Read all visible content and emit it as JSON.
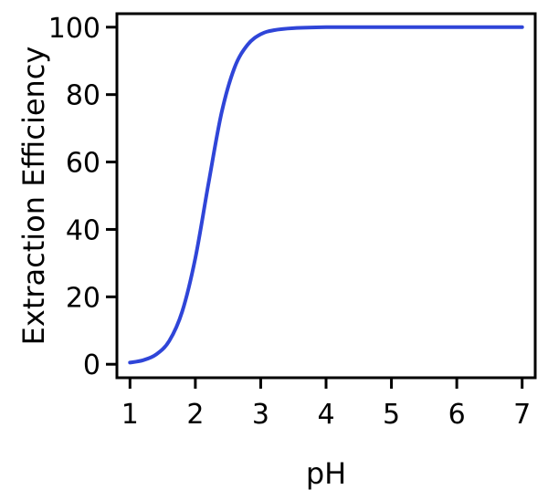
{
  "chart_data": {
    "type": "line",
    "title": "",
    "xlabel": "pH",
    "ylabel": "Extraction Efficiency",
    "xlim": [
      0.8,
      7.2
    ],
    "ylim": [
      -4,
      104
    ],
    "xticks": [
      "1",
      "2",
      "3",
      "4",
      "5",
      "6",
      "7"
    ],
    "yticks": [
      "0",
      "20",
      "40",
      "60",
      "80",
      "100"
    ],
    "grid": false,
    "legend": "none",
    "series": [
      {
        "color": "#2f45d8",
        "x": [
          1.0,
          1.2,
          1.4,
          1.6,
          1.8,
          2.0,
          2.2,
          2.4,
          2.6,
          2.8,
          3.0,
          3.2,
          3.5,
          4.0,
          4.5,
          5.0,
          5.5,
          6.0,
          6.5,
          7.0
        ],
        "y": [
          0.5,
          1.2,
          2.9,
          6.9,
          15.7,
          31.5,
          53.5,
          74.5,
          88.0,
          94.8,
          97.9,
          99.1,
          99.7,
          100,
          100,
          100,
          100,
          100,
          100,
          100
        ]
      }
    ]
  }
}
